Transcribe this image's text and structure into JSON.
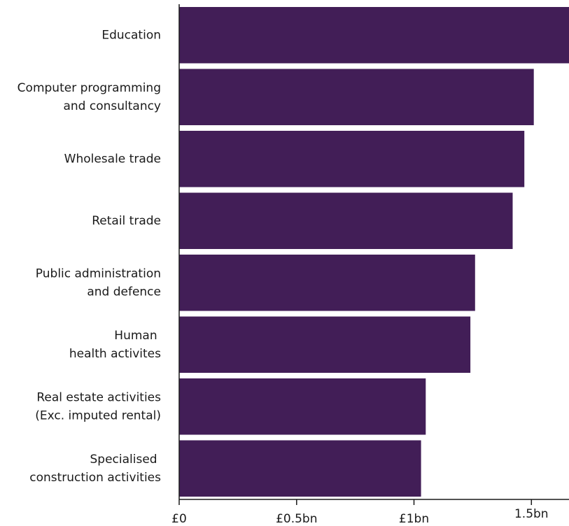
{
  "chart_data": {
    "type": "bar",
    "orientation": "horizontal",
    "categories": [
      "Education",
      "Computer programming\nand consultancy",
      "Wholesale trade",
      "Retail trade",
      "Public administration\nand defence",
      "Human \nhealth activites",
      "Real estate activities\n(Exc. imputed rental)",
      "Specialised \nconstruction activities"
    ],
    "values": [
      1.66,
      1.51,
      1.47,
      1.42,
      1.26,
      1.24,
      1.05,
      1.03
    ],
    "xlim": [
      0,
      1.66
    ],
    "xticks": [
      {
        "value": 0,
        "label": "£0"
      },
      {
        "value": 0.5,
        "label": "£0.5bn"
      },
      {
        "value": 1,
        "label": "£1bn"
      },
      {
        "value": 1.5,
        "label": "1.5bn"
      }
    ],
    "title": "",
    "xlabel": "",
    "ylabel": "",
    "grid": false,
    "bar_color": "#421e57",
    "axis_color": "#1a1a1a"
  }
}
